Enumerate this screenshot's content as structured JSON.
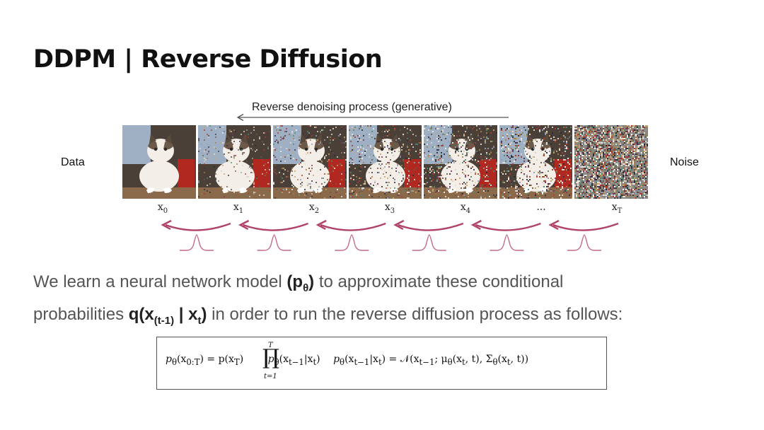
{
  "slide": {
    "title": "DDPM | Reverse Diffusion",
    "process_label": "Reverse denoising process (generative)",
    "left_label": "Data",
    "right_label": "Noise",
    "frames": [
      {
        "label": "x",
        "sub": "0",
        "noise": 0.0
      },
      {
        "label": "x",
        "sub": "1",
        "noise": 0.35
      },
      {
        "label": "x",
        "sub": "2",
        "noise": 0.5
      },
      {
        "label": "x",
        "sub": "3",
        "noise": 0.65
      },
      {
        "label": "x",
        "sub": "4",
        "noise": 0.78
      },
      {
        "label": "...",
        "sub": "",
        "noise": 0.9
      },
      {
        "label": "x",
        "sub": "T",
        "noise": 1.0
      }
    ],
    "text": {
      "line1_a": "We learn a neural network model ",
      "line1_b": "(p",
      "line1_b_sub": "θ",
      "line1_b_end": ")",
      "line1_c": " to approximate these conditional",
      "line2_a": "probabilities ",
      "line2_b": "q(x",
      "line2_b_sub": "(t-1)",
      "line2_b_mid": " | x",
      "line2_b_sub2": "t",
      "line2_b_end": ")",
      "line2_c": " in order to run the reverse diffusion process as follows:"
    },
    "formula": {
      "part1": "p",
      "part1_sub": "θ",
      "part1_rest": "(x",
      "part1_rest_sub": "0:T",
      "part1_eq": ") = p(x",
      "part1_eq_sub": "T",
      "part1_eq_end": ")",
      "prod_top": "T",
      "prod_bottom": "t=1",
      "part2": "p",
      "part2_sub": "θ",
      "part2_rest": "(x",
      "part2_rest_sub": "t−1",
      "part2_end": "|x",
      "part2_end_sub": "t",
      "part2_close": ")",
      "part3": "p",
      "part3_sub": "θ",
      "part3_rest": "(x",
      "part3_rest_sub": "t−1",
      "part3_mid": "|x",
      "part3_mid_sub": "t",
      "part3_eq": ") = 𝒩(x",
      "part3_eq_sub": "t−1",
      "part3_mu": "; μ",
      "part3_mu_sub": "θ",
      "part3_mu_args": "(x",
      "part3_mu_args_sub": "t",
      "part3_mu_close": ", t), Σ",
      "part3_sig_sub": "θ",
      "part3_sig_args": "(x",
      "part3_sig_args_sub": "t",
      "part3_sig_close": ", t))"
    },
    "colors": {
      "arrow": "#b0426a",
      "gauss": "#c46b8c"
    }
  }
}
